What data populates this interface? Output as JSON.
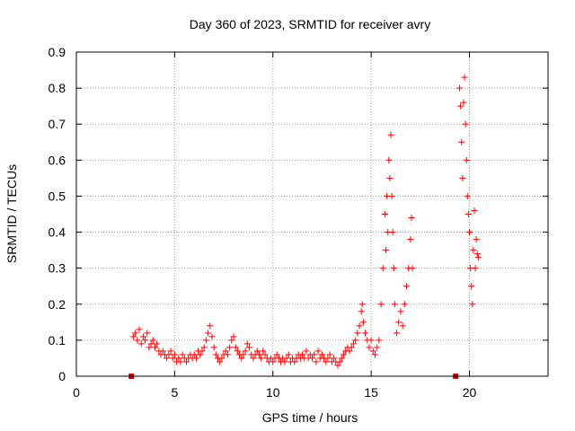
{
  "chart_data": {
    "type": "scatter",
    "title": "Day 360 of 2023, SRMTID for receiver avry",
    "xlabel": "GPS time / hours",
    "ylabel": "SRMTID / TECUs",
    "xlim": [
      0,
      24
    ],
    "ylim": [
      0,
      0.9
    ],
    "x_ticks": [
      0,
      5,
      10,
      15,
      20
    ],
    "y_ticks": [
      0,
      0.1,
      0.2,
      0.3,
      0.4,
      0.5,
      0.6,
      0.7,
      0.8,
      0.9
    ],
    "grid": true,
    "marker": "+",
    "color": "#ff0000",
    "gap_markers": [
      2.8,
      19.3
    ],
    "series": [
      {
        "name": "avry",
        "points": [
          [
            2.9,
            0.11
          ],
          [
            3.0,
            0.12
          ],
          [
            3.1,
            0.1
          ],
          [
            3.2,
            0.13
          ],
          [
            3.3,
            0.09
          ],
          [
            3.4,
            0.11
          ],
          [
            3.5,
            0.1
          ],
          [
            3.6,
            0.12
          ],
          [
            3.7,
            0.08
          ],
          [
            3.8,
            0.09
          ],
          [
            3.9,
            0.1
          ],
          [
            4.0,
            0.08
          ],
          [
            4.1,
            0.09
          ],
          [
            4.2,
            0.07
          ],
          [
            4.3,
            0.06
          ],
          [
            4.4,
            0.07
          ],
          [
            4.5,
            0.06
          ],
          [
            4.6,
            0.05
          ],
          [
            4.7,
            0.06
          ],
          [
            4.8,
            0.07
          ],
          [
            4.9,
            0.05
          ],
          [
            5.0,
            0.06
          ],
          [
            5.1,
            0.04
          ],
          [
            5.2,
            0.05
          ],
          [
            5.3,
            0.04
          ],
          [
            5.4,
            0.06
          ],
          [
            5.5,
            0.05
          ],
          [
            5.6,
            0.04
          ],
          [
            5.7,
            0.05
          ],
          [
            5.8,
            0.06
          ],
          [
            5.9,
            0.05
          ],
          [
            6.0,
            0.06
          ],
          [
            6.1,
            0.05
          ],
          [
            6.2,
            0.07
          ],
          [
            6.3,
            0.06
          ],
          [
            6.4,
            0.07
          ],
          [
            6.5,
            0.08
          ],
          [
            6.6,
            0.1
          ],
          [
            6.7,
            0.12
          ],
          [
            6.8,
            0.14
          ],
          [
            6.9,
            0.11
          ],
          [
            7.0,
            0.08
          ],
          [
            7.1,
            0.06
          ],
          [
            7.2,
            0.05
          ],
          [
            7.3,
            0.04
          ],
          [
            7.4,
            0.05
          ],
          [
            7.5,
            0.06
          ],
          [
            7.6,
            0.07
          ],
          [
            7.7,
            0.06
          ],
          [
            7.8,
            0.08
          ],
          [
            7.9,
            0.1
          ],
          [
            8.0,
            0.11
          ],
          [
            8.1,
            0.08
          ],
          [
            8.2,
            0.07
          ],
          [
            8.3,
            0.06
          ],
          [
            8.4,
            0.05
          ],
          [
            8.5,
            0.06
          ],
          [
            8.6,
            0.07
          ],
          [
            8.7,
            0.09
          ],
          [
            8.8,
            0.08
          ],
          [
            8.9,
            0.06
          ],
          [
            9.0,
            0.05
          ],
          [
            9.1,
            0.06
          ],
          [
            9.2,
            0.07
          ],
          [
            9.3,
            0.06
          ],
          [
            9.4,
            0.05
          ],
          [
            9.5,
            0.07
          ],
          [
            9.6,
            0.06
          ],
          [
            9.7,
            0.05
          ],
          [
            9.8,
            0.04
          ],
          [
            9.9,
            0.05
          ],
          [
            10.0,
            0.04
          ],
          [
            10.1,
            0.05
          ],
          [
            10.2,
            0.06
          ],
          [
            10.3,
            0.05
          ],
          [
            10.4,
            0.04
          ],
          [
            10.5,
            0.05
          ],
          [
            10.6,
            0.04
          ],
          [
            10.7,
            0.05
          ],
          [
            10.8,
            0.06
          ],
          [
            10.9,
            0.04
          ],
          [
            11.0,
            0.05
          ],
          [
            11.1,
            0.04
          ],
          [
            11.2,
            0.05
          ],
          [
            11.3,
            0.06
          ],
          [
            11.4,
            0.05
          ],
          [
            11.5,
            0.06
          ],
          [
            11.6,
            0.05
          ],
          [
            11.7,
            0.07
          ],
          [
            11.8,
            0.05
          ],
          [
            11.9,
            0.06
          ],
          [
            12.0,
            0.05
          ],
          [
            12.1,
            0.06
          ],
          [
            12.2,
            0.04
          ],
          [
            12.3,
            0.07
          ],
          [
            12.4,
            0.05
          ],
          [
            12.5,
            0.06
          ],
          [
            12.6,
            0.05
          ],
          [
            12.7,
            0.04
          ],
          [
            12.8,
            0.05
          ],
          [
            12.9,
            0.06
          ],
          [
            13.0,
            0.04
          ],
          [
            13.1,
            0.05
          ],
          [
            13.2,
            0.04
          ],
          [
            13.3,
            0.03
          ],
          [
            13.4,
            0.04
          ],
          [
            13.5,
            0.05
          ],
          [
            13.6,
            0.06
          ],
          [
            13.7,
            0.07
          ],
          [
            13.8,
            0.08
          ],
          [
            13.9,
            0.07
          ],
          [
            14.0,
            0.08
          ],
          [
            14.1,
            0.09
          ],
          [
            14.2,
            0.1
          ],
          [
            14.3,
            0.12
          ],
          [
            14.4,
            0.14
          ],
          [
            14.5,
            0.18
          ],
          [
            14.55,
            0.2
          ],
          [
            14.6,
            0.15
          ],
          [
            14.7,
            0.12
          ],
          [
            14.8,
            0.1
          ],
          [
            14.9,
            0.08
          ],
          [
            15.0,
            0.1
          ],
          [
            15.1,
            0.07
          ],
          [
            15.2,
            0.06
          ],
          [
            15.3,
            0.08
          ],
          [
            15.4,
            0.1
          ],
          [
            15.5,
            0.2
          ],
          [
            15.6,
            0.3
          ],
          [
            15.7,
            0.45
          ],
          [
            15.75,
            0.35
          ],
          [
            15.8,
            0.5
          ],
          [
            15.85,
            0.4
          ],
          [
            15.9,
            0.6
          ],
          [
            15.95,
            0.55
          ],
          [
            16.0,
            0.67
          ],
          [
            16.05,
            0.5
          ],
          [
            16.1,
            0.4
          ],
          [
            16.15,
            0.3
          ],
          [
            16.2,
            0.2
          ],
          [
            16.3,
            0.12
          ],
          [
            16.4,
            0.15
          ],
          [
            16.5,
            0.18
          ],
          [
            16.6,
            0.14
          ],
          [
            16.7,
            0.2
          ],
          [
            16.8,
            0.25
          ],
          [
            16.9,
            0.3
          ],
          [
            17.0,
            0.38
          ],
          [
            17.05,
            0.44
          ],
          [
            17.1,
            0.3
          ],
          [
            19.5,
            0.8
          ],
          [
            19.55,
            0.75
          ],
          [
            19.6,
            0.65
          ],
          [
            19.65,
            0.55
          ],
          [
            19.7,
            0.76
          ],
          [
            19.75,
            0.83
          ],
          [
            19.8,
            0.7
          ],
          [
            19.85,
            0.6
          ],
          [
            19.9,
            0.5
          ],
          [
            19.95,
            0.45
          ],
          [
            20.0,
            0.4
          ],
          [
            20.05,
            0.3
          ],
          [
            20.1,
            0.25
          ],
          [
            20.15,
            0.2
          ],
          [
            20.2,
            0.35
          ],
          [
            20.25,
            0.46
          ],
          [
            20.3,
            0.3
          ],
          [
            20.35,
            0.38
          ],
          [
            20.4,
            0.34
          ],
          [
            20.45,
            0.33
          ]
        ]
      }
    ]
  }
}
